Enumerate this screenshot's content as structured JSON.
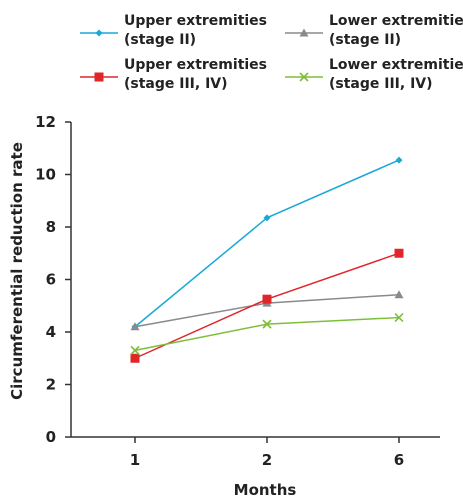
{
  "chart_data": {
    "type": "line",
    "categories": [
      "1",
      "2",
      "6"
    ],
    "xlabel": "Months",
    "ylabel": "Circumferential reduction rate",
    "ylim": [
      0,
      12
    ],
    "yticks": [
      "0",
      "2",
      "4",
      "6",
      "8",
      "10",
      "12"
    ],
    "grid": false,
    "legend_position": "top",
    "series": [
      {
        "name_lines": [
          "Upper extremities",
          "(stage II)"
        ],
        "values": [
          4.2,
          8.35,
          10.55
        ],
        "color": "#1aa8d8",
        "marker": "diamond"
      },
      {
        "name_lines": [
          "Lower extremities",
          "(stage II)"
        ],
        "values": [
          4.2,
          5.1,
          5.42
        ],
        "color": "#8a8a8a",
        "marker": "triangle"
      },
      {
        "name_lines": [
          "Upper extremities",
          "(stage III, IV)"
        ],
        "values": [
          3.0,
          5.25,
          7.0
        ],
        "color": "#e0262a",
        "marker": "square"
      },
      {
        "name_lines": [
          "Lower extremities",
          "(stage III, IV)"
        ],
        "values": [
          3.3,
          4.3,
          4.55
        ],
        "color": "#7dbf3a",
        "marker": "x"
      }
    ]
  }
}
